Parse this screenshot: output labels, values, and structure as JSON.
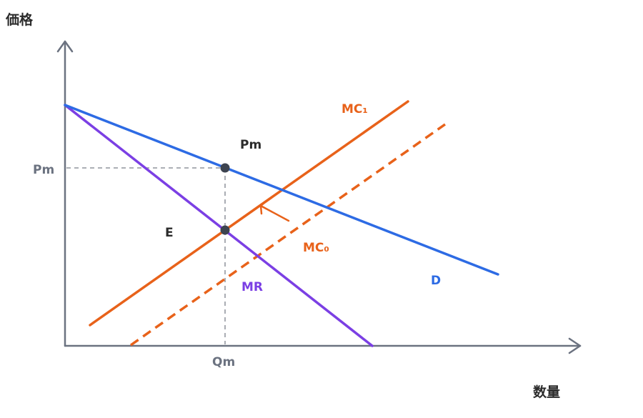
{
  "axes": {
    "y_label": "価格",
    "x_label": "数量",
    "y_tick": "Pm",
    "x_tick": "Qm"
  },
  "curves": {
    "demand": {
      "label": "D",
      "color": "#2d6be4"
    },
    "marginal_revenue": {
      "label": "MR",
      "color": "#7b3fe4"
    },
    "mc_new": {
      "label": "MC₁",
      "color": "#e8621a"
    },
    "mc_old": {
      "label": "MC₀",
      "color": "#e8621a"
    }
  },
  "points": {
    "price_point": "Pm",
    "equilibrium": "E"
  },
  "colors": {
    "axis": "#6b7280",
    "guide": "#a0a4ab",
    "text_dark": "#2b2b2b",
    "point": "#3d4450"
  }
}
